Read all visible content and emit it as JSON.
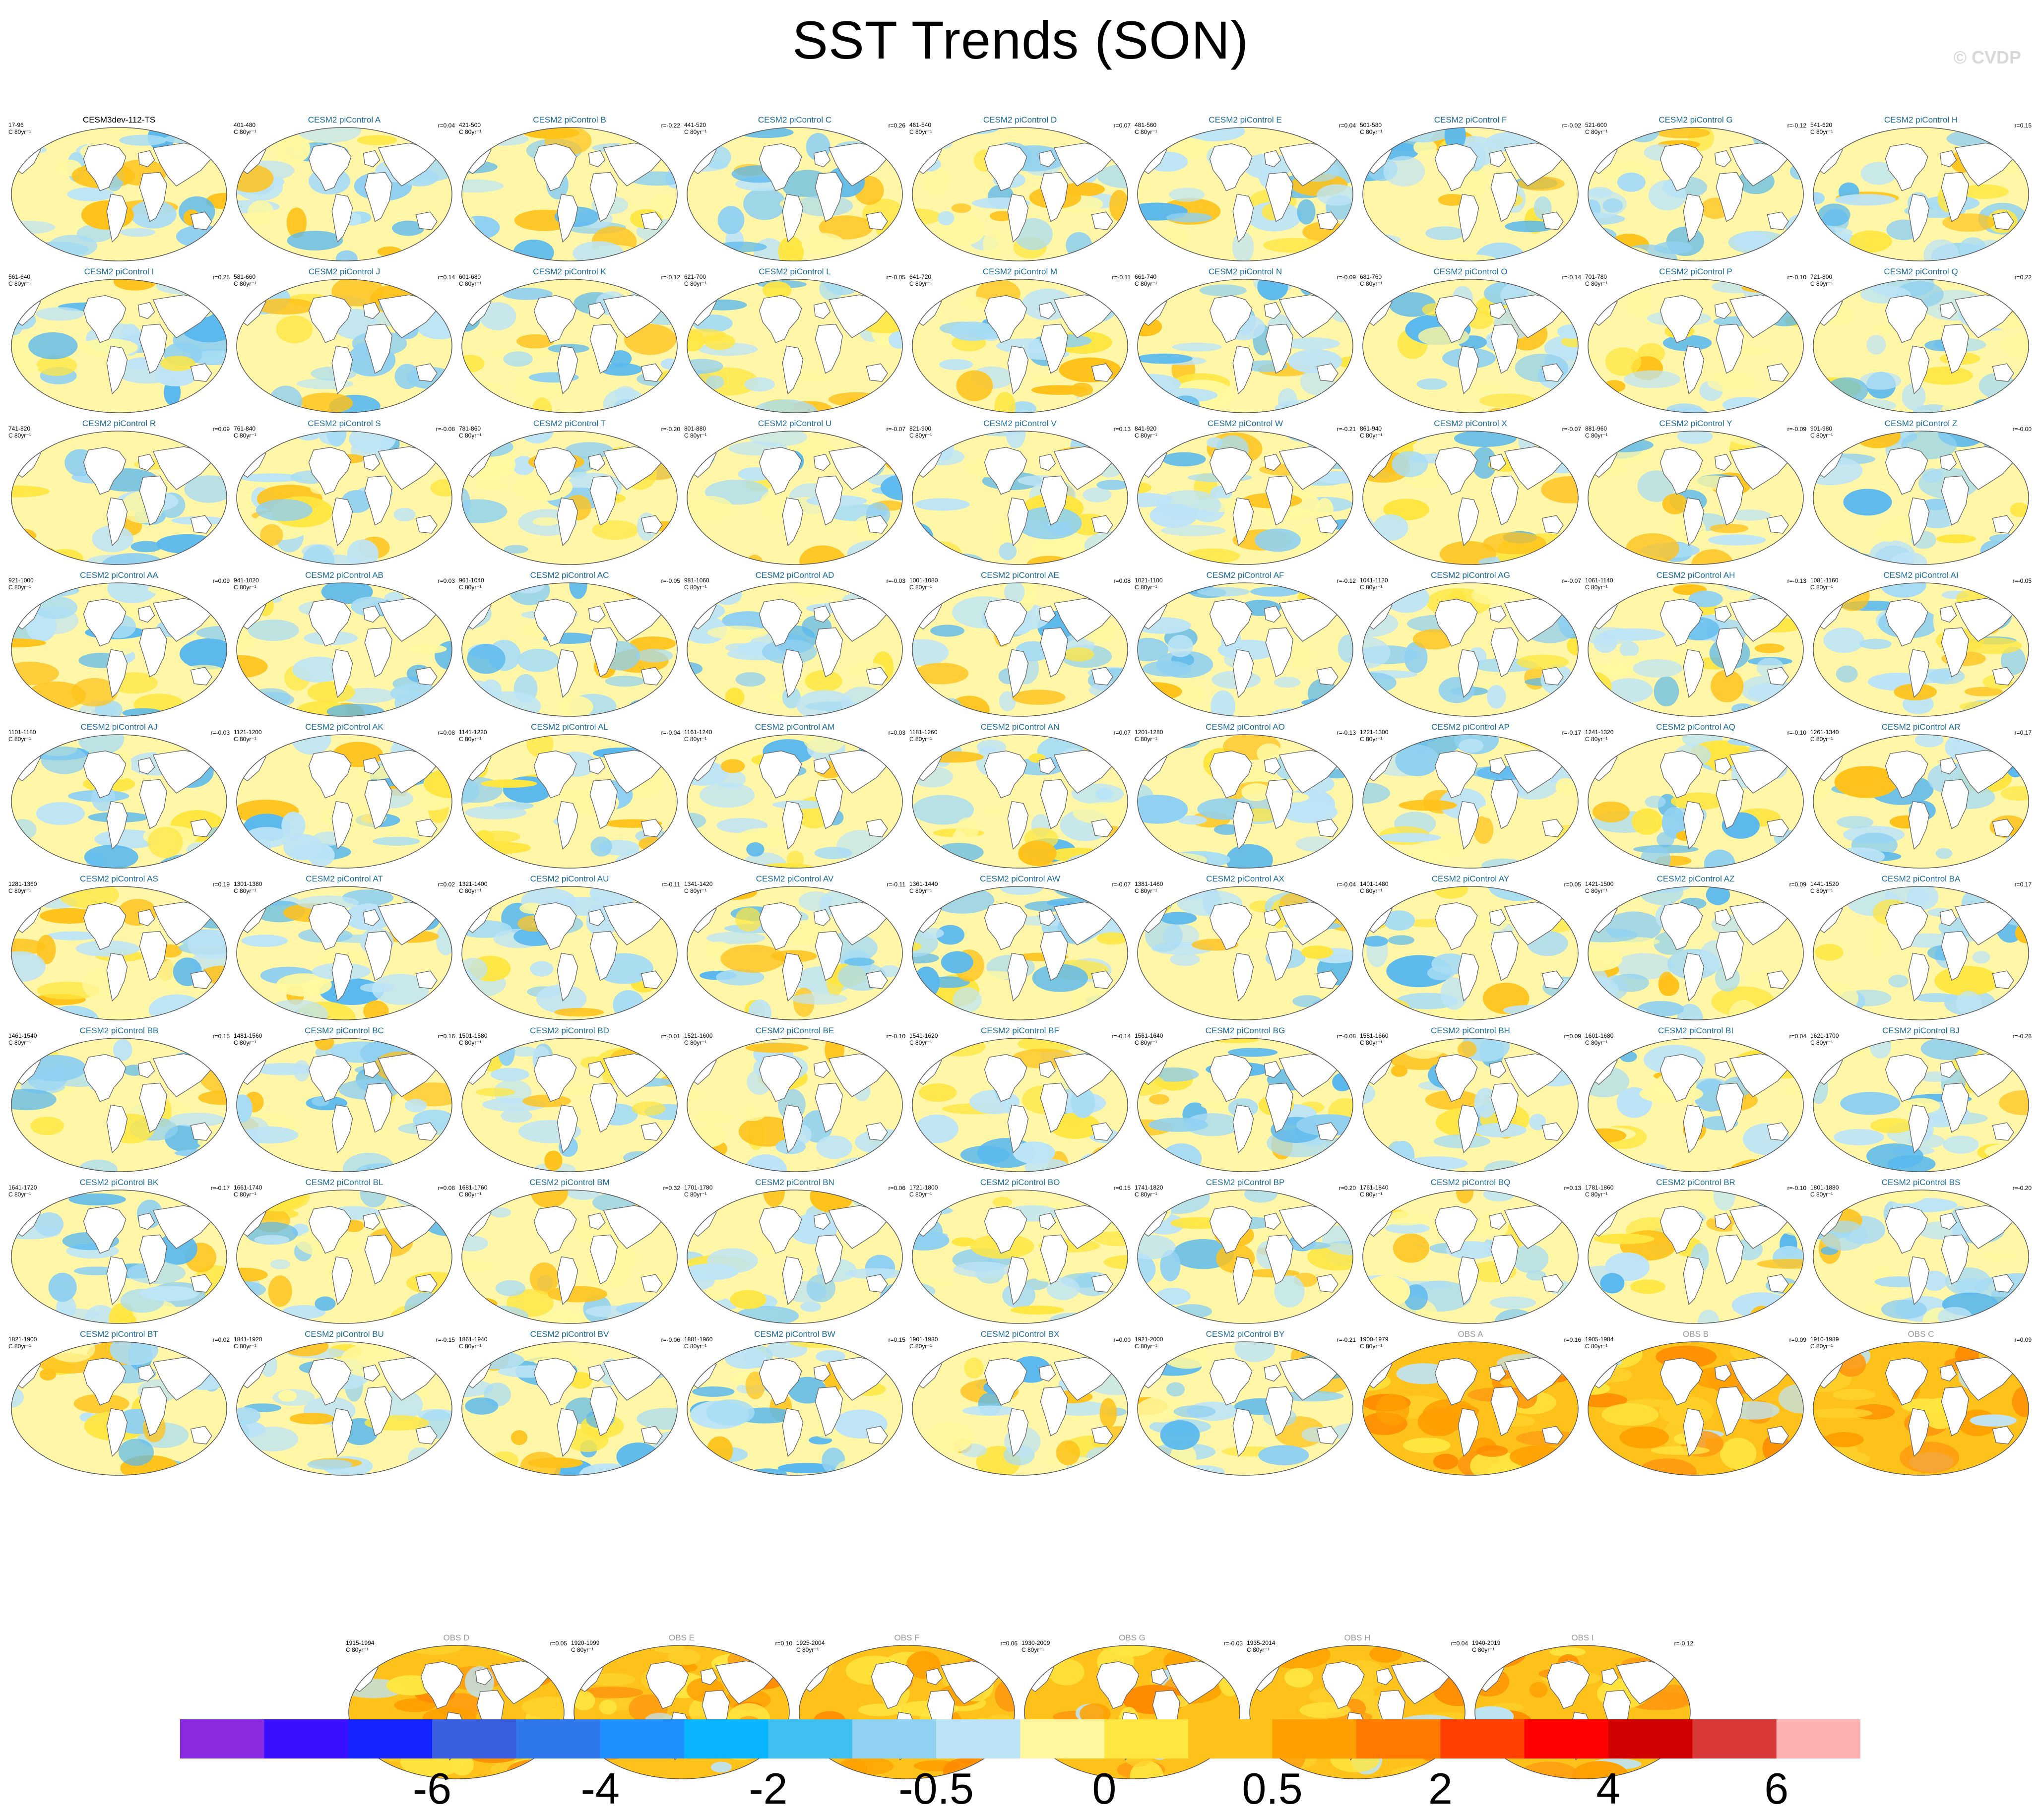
{
  "title": "SST Trends (SON)",
  "credit": "© CVDP",
  "unit_label": "C 80yr⁻¹",
  "colorbar": {
    "colors": [
      "#8a2be2",
      "#3a0eff",
      "#1424ff",
      "#3a5ee0",
      "#2f78ec",
      "#2090ff",
      "#08b4ff",
      "#40c0f0",
      "#90d0f0",
      "#bde4f6",
      "#fff8a0",
      "#ffe640",
      "#ffc21a",
      "#ffa000",
      "#ff7800",
      "#ff4000",
      "#ff0000",
      "#d00000",
      "#d83838",
      "#ffb0b0"
    ],
    "tick_labels": [
      "-6",
      "-4",
      "-2",
      "-0.5",
      "0",
      "0.5",
      "2",
      "4",
      "6"
    ]
  },
  "panels": [
    {
      "title": "CESM3dev-112-TS",
      "years": "17-96",
      "r": ""
    },
    {
      "title": "CESM2 piControl A",
      "years": "401-480",
      "r": "r=0.04"
    },
    {
      "title": "CESM2 piControl B",
      "years": "421-500",
      "r": "r=-0.22"
    },
    {
      "title": "CESM2 piControl C",
      "years": "441-520",
      "r": "r=0.26"
    },
    {
      "title": "CESM2 piControl D",
      "years": "461-540",
      "r": "r=0.07"
    },
    {
      "title": "CESM2 piControl E",
      "years": "481-560",
      "r": "r=0.04"
    },
    {
      "title": "CESM2 piControl F",
      "years": "501-580",
      "r": "r=-0.02"
    },
    {
      "title": "CESM2 piControl G",
      "years": "521-600",
      "r": "r=-0.12"
    },
    {
      "title": "CESM2 piControl H",
      "years": "541-620",
      "r": "r=0.15"
    },
    {
      "title": "CESM2 piControl I",
      "years": "561-640",
      "r": "r=0.25"
    },
    {
      "title": "CESM2 piControl J",
      "years": "581-660",
      "r": "r=0.14"
    },
    {
      "title": "CESM2 piControl K",
      "years": "601-680",
      "r": "r=-0.12"
    },
    {
      "title": "CESM2 piControl L",
      "years": "621-700",
      "r": "r=-0.05"
    },
    {
      "title": "CESM2 piControl M",
      "years": "641-720",
      "r": "r=-0.11"
    },
    {
      "title": "CESM2 piControl N",
      "years": "661-740",
      "r": "r=-0.09"
    },
    {
      "title": "CESM2 piControl O",
      "years": "681-760",
      "r": "r=-0.14"
    },
    {
      "title": "CESM2 piControl P",
      "years": "701-780",
      "r": "r=-0.10"
    },
    {
      "title": "CESM2 piControl Q",
      "years": "721-800",
      "r": "r=0.22"
    },
    {
      "title": "CESM2 piControl R",
      "years": "741-820",
      "r": "r=0.09"
    },
    {
      "title": "CESM2 piControl S",
      "years": "761-840",
      "r": "r=-0.08"
    },
    {
      "title": "CESM2 piControl T",
      "years": "781-860",
      "r": "r=-0.20"
    },
    {
      "title": "CESM2 piControl U",
      "years": "801-880",
      "r": "r=-0.07"
    },
    {
      "title": "CESM2 piControl V",
      "years": "821-900",
      "r": "r=0.13"
    },
    {
      "title": "CESM2 piControl W",
      "years": "841-920",
      "r": "r=-0.21"
    },
    {
      "title": "CESM2 piControl X",
      "years": "861-940",
      "r": "r=-0.07"
    },
    {
      "title": "CESM2 piControl Y",
      "years": "881-960",
      "r": "r=-0.09"
    },
    {
      "title": "CESM2 piControl Z",
      "years": "901-980",
      "r": "r=-0.00"
    },
    {
      "title": "CESM2 piControl AA",
      "years": "921-1000",
      "r": "r=0.09"
    },
    {
      "title": "CESM2 piControl AB",
      "years": "941-1020",
      "r": "r=0.03"
    },
    {
      "title": "CESM2 piControl AC",
      "years": "961-1040",
      "r": "r=-0.05"
    },
    {
      "title": "CESM2 piControl AD",
      "years": "981-1060",
      "r": "r=-0.03"
    },
    {
      "title": "CESM2 piControl AE",
      "years": "1001-1080",
      "r": "r=0.08"
    },
    {
      "title": "CESM2 piControl AF",
      "years": "1021-1100",
      "r": "r=-0.12"
    },
    {
      "title": "CESM2 piControl AG",
      "years": "1041-1120",
      "r": "r=-0.07"
    },
    {
      "title": "CESM2 piControl AH",
      "years": "1061-1140",
      "r": "r=-0.13"
    },
    {
      "title": "CESM2 piControl AI",
      "years": "1081-1160",
      "r": "r=-0.05"
    },
    {
      "title": "CESM2 piControl AJ",
      "years": "1101-1180",
      "r": "r=-0.03"
    },
    {
      "title": "CESM2 piControl AK",
      "years": "1121-1200",
      "r": "r=0.08"
    },
    {
      "title": "CESM2 piControl AL",
      "years": "1141-1220",
      "r": "r=-0.04"
    },
    {
      "title": "CESM2 piControl AM",
      "years": "1161-1240",
      "r": "r=0.03"
    },
    {
      "title": "CESM2 piControl AN",
      "years": "1181-1260",
      "r": "r=0.07"
    },
    {
      "title": "CESM2 piControl AO",
      "years": "1201-1280",
      "r": "r=-0.13"
    },
    {
      "title": "CESM2 piControl AP",
      "years": "1221-1300",
      "r": "r=-0.17"
    },
    {
      "title": "CESM2 piControl AQ",
      "years": "1241-1320",
      "r": "r=-0.10"
    },
    {
      "title": "CESM2 piControl AR",
      "years": "1261-1340",
      "r": "r=0.17"
    },
    {
      "title": "CESM2 piControl AS",
      "years": "1281-1360",
      "r": "r=0.19"
    },
    {
      "title": "CESM2 piControl AT",
      "years": "1301-1380",
      "r": "r=0.02"
    },
    {
      "title": "CESM2 piControl AU",
      "years": "1321-1400",
      "r": "r=-0.11"
    },
    {
      "title": "CESM2 piControl AV",
      "years": "1341-1420",
      "r": "r=-0.11"
    },
    {
      "title": "CESM2 piControl AW",
      "years": "1361-1440",
      "r": "r=-0.07"
    },
    {
      "title": "CESM2 piControl AX",
      "years": "1381-1460",
      "r": "r=-0.04"
    },
    {
      "title": "CESM2 piControl AY",
      "years": "1401-1480",
      "r": "r=0.05"
    },
    {
      "title": "CESM2 piControl AZ",
      "years": "1421-1500",
      "r": "r=0.09"
    },
    {
      "title": "CESM2 piControl BA",
      "years": "1441-1520",
      "r": "r=0.17"
    },
    {
      "title": "CESM2 piControl BB",
      "years": "1461-1540",
      "r": "r=0.15"
    },
    {
      "title": "CESM2 piControl BC",
      "years": "1481-1560",
      "r": "r=0.16"
    },
    {
      "title": "CESM2 piControl BD",
      "years": "1501-1580",
      "r": "r=-0.01"
    },
    {
      "title": "CESM2 piControl BE",
      "years": "1521-1600",
      "r": "r=-0.10"
    },
    {
      "title": "CESM2 piControl BF",
      "years": "1541-1620",
      "r": "r=-0.14"
    },
    {
      "title": "CESM2 piControl BG",
      "years": "1561-1640",
      "r": "r=-0.08"
    },
    {
      "title": "CESM2 piControl BH",
      "years": "1581-1660",
      "r": "r=0.09"
    },
    {
      "title": "CESM2 piControl BI",
      "years": "1601-1680",
      "r": "r=0.04"
    },
    {
      "title": "CESM2 piControl BJ",
      "years": "1621-1700",
      "r": "r=-0.28"
    },
    {
      "title": "CESM2 piControl BK",
      "years": "1641-1720",
      "r": "r=-0.17"
    },
    {
      "title": "CESM2 piControl BL",
      "years": "1661-1740",
      "r": "r=0.08"
    },
    {
      "title": "CESM2 piControl BM",
      "years": "1681-1760",
      "r": "r=0.32"
    },
    {
      "title": "CESM2 piControl BN",
      "years": "1701-1780",
      "r": "r=0.06"
    },
    {
      "title": "CESM2 piControl BO",
      "years": "1721-1800",
      "r": "r=0.15"
    },
    {
      "title": "CESM2 piControl BP",
      "years": "1741-1820",
      "r": "r=0.20"
    },
    {
      "title": "CESM2 piControl BQ",
      "years": "1761-1840",
      "r": "r=0.13"
    },
    {
      "title": "CESM2 piControl BR",
      "years": "1781-1860",
      "r": "r=-0.10"
    },
    {
      "title": "CESM2 piControl BS",
      "years": "1801-1880",
      "r": "r=-0.20"
    },
    {
      "title": "CESM2 piControl BT",
      "years": "1821-1900",
      "r": "r=0.02"
    },
    {
      "title": "CESM2 piControl BU",
      "years": "1841-1920",
      "r": "r=-0.15"
    },
    {
      "title": "CESM2 piControl BV",
      "years": "1861-1940",
      "r": "r=-0.06"
    },
    {
      "title": "CESM2 piControl BW",
      "years": "1881-1960",
      "r": "r=0.15"
    },
    {
      "title": "CESM2 piControl BX",
      "years": "1901-1980",
      "r": "r=0.00"
    },
    {
      "title": "CESM2 piControl BY",
      "years": "1921-2000",
      "r": "r=-0.21"
    },
    {
      "title": "OBS A",
      "years": "1900-1979",
      "r": "r=0.16"
    },
    {
      "title": "OBS B",
      "years": "1905-1984",
      "r": "r=0.09"
    },
    {
      "title": "OBS C",
      "years": "1910-1989",
      "r": "r=0.09"
    },
    {
      "title": "OBS D",
      "years": "1915-1994",
      "r": "r=0.05"
    },
    {
      "title": "OBS E",
      "years": "1920-1999",
      "r": "r=0.10"
    },
    {
      "title": "OBS F",
      "years": "1925-2004",
      "r": "r=0.06"
    },
    {
      "title": "OBS G",
      "years": "1930-2009",
      "r": "r=-0.03"
    },
    {
      "title": "OBS H",
      "years": "1935-2014",
      "r": "r=0.04"
    },
    {
      "title": "OBS I",
      "years": "1940-2019",
      "r": "r=-0.12"
    }
  ]
}
